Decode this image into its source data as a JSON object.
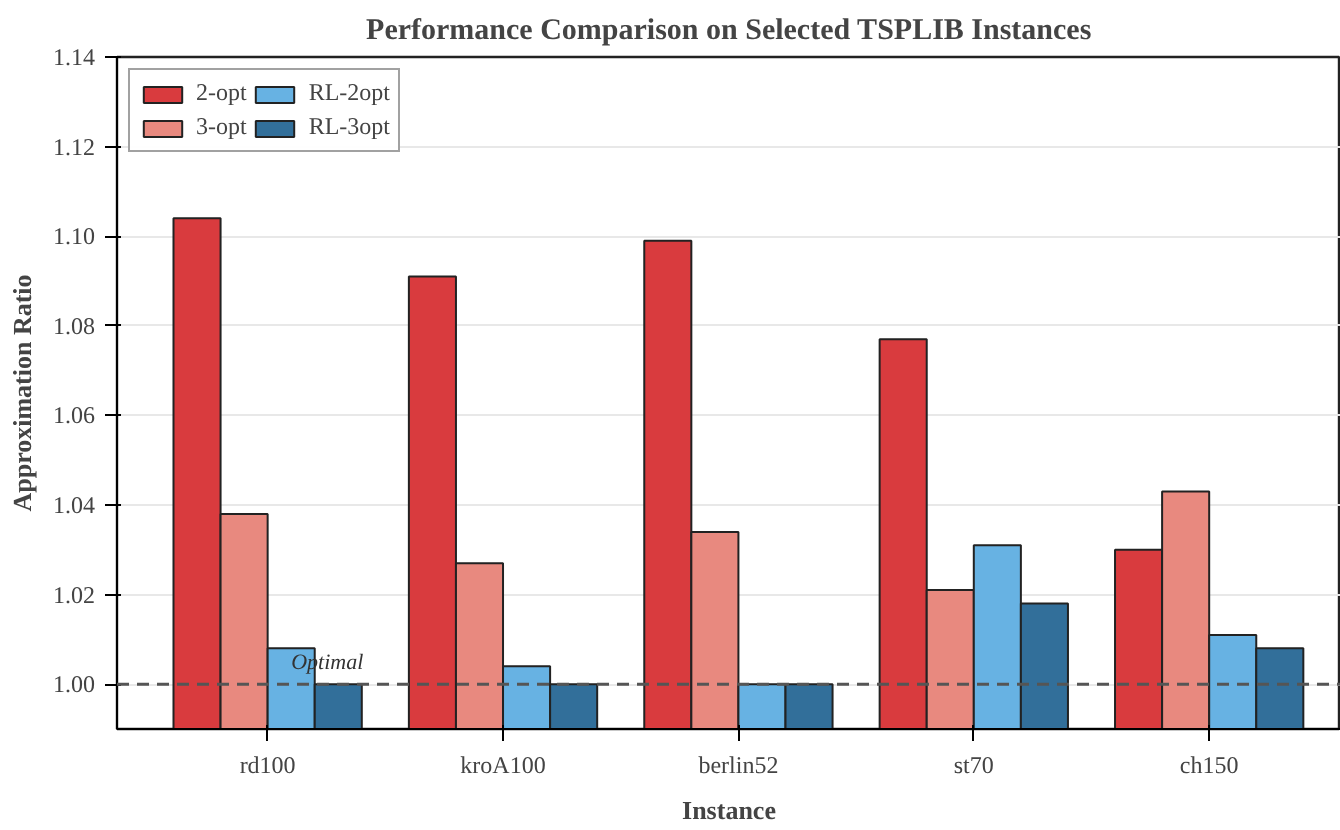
{
  "chart_data": {
    "type": "bar",
    "title": "Performance Comparison on Selected TSPLIB Instances",
    "xlabel": "Instance",
    "ylabel": "Approximation Ratio",
    "categories": [
      "rd100",
      "kroA100",
      "berlin52",
      "st70",
      "ch150"
    ],
    "series": [
      {
        "name": "2-opt",
        "color": "#d93b3e",
        "values": [
          1.104,
          1.091,
          1.099,
          1.077,
          1.03
        ]
      },
      {
        "name": "3-opt",
        "color": "#e8897f",
        "values": [
          1.038,
          1.027,
          1.034,
          1.021,
          1.043
        ]
      },
      {
        "name": "RL-2opt",
        "color": "#67b2e3",
        "values": [
          1.008,
          1.004,
          1.0,
          1.031,
          1.011
        ]
      },
      {
        "name": "RL-3opt",
        "color": "#326f9a",
        "values": [
          1.0,
          1.0,
          1.0,
          1.018,
          1.008
        ]
      }
    ],
    "ylim": [
      0.99,
      1.14
    ],
    "yticks": [
      {
        "value": 1.0,
        "label": "1.00"
      },
      {
        "value": 1.02,
        "label": "1.02"
      },
      {
        "value": 1.04,
        "label": "1.04"
      },
      {
        "value": 1.06,
        "label": "1.06"
      },
      {
        "value": 1.08,
        "label": "1.08"
      },
      {
        "value": 1.1,
        "label": "1.10"
      },
      {
        "value": 1.12,
        "label": "1.12"
      },
      {
        "value": 1.14,
        "label": "1.14"
      }
    ],
    "ref_lines": [
      {
        "axis": "y",
        "value": 1.0,
        "label": "Optimal",
        "color": "#555555",
        "line_style": "dashed"
      }
    ],
    "grid": "y",
    "legend": "top left"
  }
}
